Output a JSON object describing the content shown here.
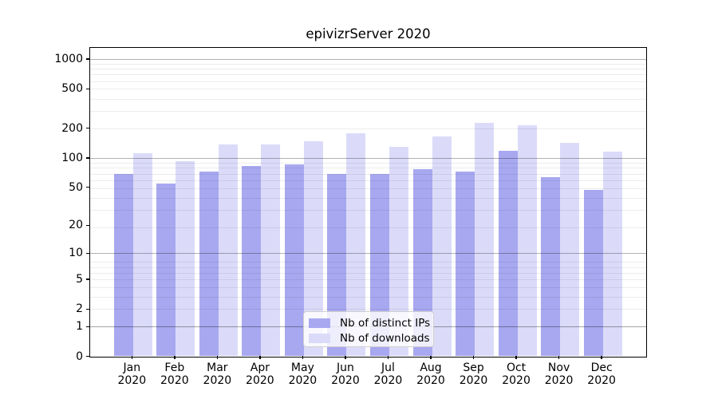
{
  "figure": {
    "title": "epivizrServer 2020"
  },
  "chart_data": {
    "type": "bar",
    "title": "epivizrServer 2020",
    "categories": [
      "Jan",
      "Feb",
      "Mar",
      "Apr",
      "May",
      "Jun",
      "Jul",
      "Aug",
      "Sep",
      "Oct",
      "Nov",
      "Dec"
    ],
    "category_year": "2020",
    "series": [
      {
        "name": "Nb of distinct IPs",
        "color": "#a8a8f0",
        "values": [
          69,
          55,
          73,
          82,
          85,
          69,
          68,
          76,
          72,
          117,
          63,
          47
        ]
      },
      {
        "name": "Nb of downloads",
        "color": "#dbdbf9",
        "values": [
          112,
          92,
          137,
          137,
          147,
          179,
          130,
          165,
          228,
          213,
          141,
          116
        ]
      }
    ],
    "y_axis": {
      "scale": "log1p",
      "tick_labels": [
        "1000",
        "500",
        "200",
        "100",
        "50",
        "20",
        "10",
        "5",
        "2",
        "1",
        "0"
      ],
      "tick_values": [
        1000,
        500,
        200,
        100,
        50,
        20,
        10,
        5,
        2,
        1,
        0
      ],
      "major_grid_values": [
        1,
        10,
        100,
        1000
      ],
      "ylim": [
        0,
        1200
      ]
    },
    "grid": true,
    "legend_position": "bottom-center",
    "colors": {
      "major_grid": "rgba(0,0,0,0.30)",
      "minor_grid": "rgba(0,0,0,0.075)",
      "frame": "#000000",
      "background": "#ffffff"
    }
  }
}
